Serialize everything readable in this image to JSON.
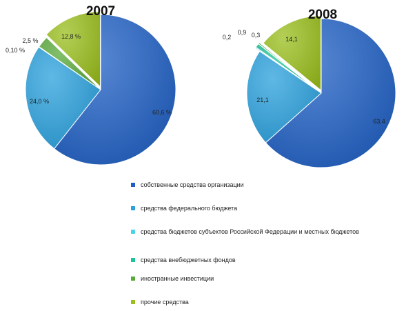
{
  "colors": {
    "own_funds": "#1f5fc4",
    "federal_budget": "#2aa0dc",
    "regional_budgets": "#49d3e6",
    "extrabudgetary_funds": "#1fc39a",
    "foreign_investment": "#5aaa3a",
    "other_funds": "#9bbf1e"
  },
  "chart_data": [
    {
      "type": "pie",
      "title": "2007",
      "slices": [
        {
          "label": "собственные средства организации",
          "value": 60.6,
          "data_label": "60,6 %",
          "color_key": "own_funds"
        },
        {
          "label": "средства федерального бюджета",
          "value": 24.0,
          "data_label": "24,0 %",
          "color_key": "federal_budget"
        },
        {
          "label": "средства бюджетов субъектов Российской Федерации и местных бюджетов",
          "value": 0.1,
          "data_label": "0,10 %",
          "color_key": "regional_budgets"
        },
        {
          "label": "средства внебюджетных фондов",
          "value": 0.0,
          "data_label": "",
          "color_key": "extrabudgetary_funds"
        },
        {
          "label": "иностранные инвестиции",
          "value": 2.5,
          "data_label": "2,5 %",
          "color_key": "foreign_investment"
        },
        {
          "label": "прочие средства",
          "value": 12.8,
          "data_label": "12,8 %",
          "color_key": "other_funds"
        }
      ],
      "exploded_slice": "other_funds"
    },
    {
      "type": "pie",
      "title": "2008",
      "slices": [
        {
          "label": "собственные средства организации",
          "value": 63.4,
          "data_label": "63,4",
          "color_key": "own_funds"
        },
        {
          "label": "средства федерального бюджета",
          "value": 21.1,
          "data_label": "21,1",
          "color_key": "federal_budget"
        },
        {
          "label": "средства бюджетов субъектов Российской Федерации и местных бюджетов",
          "value": 0.2,
          "data_label": "0,2",
          "color_key": "regional_budgets"
        },
        {
          "label": "средства внебюджетных фондов",
          "value": 0.9,
          "data_label": "0,9",
          "color_key": "extrabudgetary_funds"
        },
        {
          "label": "иностранные инвестиции",
          "value": 0.3,
          "data_label": "0,3",
          "color_key": "foreign_investment"
        },
        {
          "label": "прочие средства",
          "value": 14.1,
          "data_label": "14,1",
          "color_key": "other_funds"
        }
      ],
      "exploded_slice": "other_funds"
    }
  ],
  "legend": {
    "placement": "bottom",
    "items": [
      {
        "label": "собственные средства организации",
        "color_key": "own_funds"
      },
      {
        "label": "средства федерального бюджета",
        "color_key": "federal_budget"
      },
      {
        "label": "средства бюджетов субъектов Российской Федерации и местных бюджетов",
        "color_key": "regional_budgets"
      },
      {
        "label": "средства внебюджетных фондов",
        "color_key": "extrabudgetary_funds"
      },
      {
        "label": "иностранные инвестиции",
        "color_key": "foreign_investment"
      },
      {
        "label": "прочие средства",
        "color_key": "other_funds"
      }
    ]
  }
}
